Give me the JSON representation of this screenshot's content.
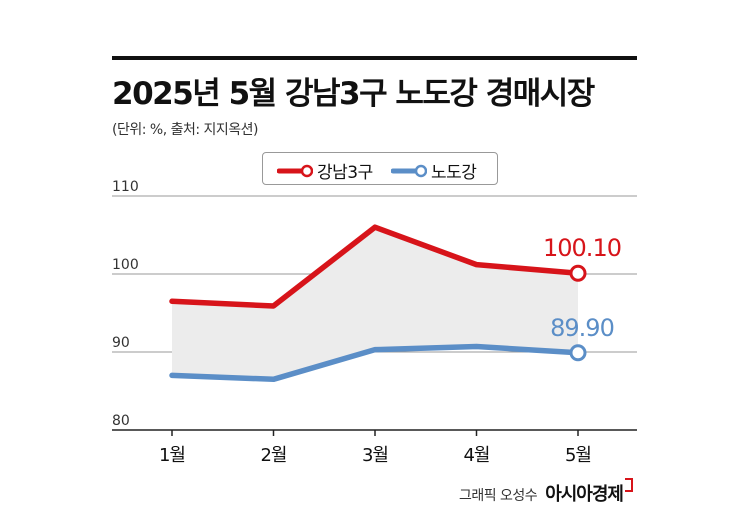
{
  "title": "2025년 5월 강남3구 노도강 경매시장",
  "subtitle": "(단위: %, 출처: 지지옥션)",
  "credit": {
    "graphic": "그래픽 오성수",
    "brand": "아시아경제"
  },
  "colors": {
    "gangnam": "#d7141a",
    "nodogang": "#5b8ec7",
    "area": "#ececec"
  },
  "chart_data": {
    "type": "line",
    "categories": [
      "1월",
      "2월",
      "3월",
      "4월",
      "5월"
    ],
    "ylim": [
      80,
      110
    ],
    "yticks": [
      80,
      90,
      100,
      110
    ],
    "series": [
      {
        "name": "강남3구",
        "values": [
          96.5,
          95.9,
          106.0,
          101.2,
          100.1
        ],
        "end_label": "100.10"
      },
      {
        "name": "노도강",
        "values": [
          87.0,
          86.5,
          90.3,
          90.7,
          89.9
        ],
        "end_label": "89.90"
      }
    ]
  }
}
